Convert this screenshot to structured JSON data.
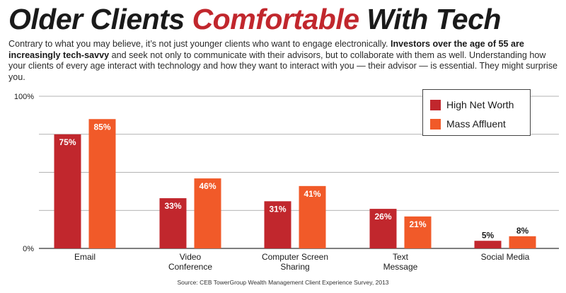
{
  "header": {
    "title_part1": "Older Clients ",
    "title_accent": "Comfortable",
    "title_part2": " With Tech"
  },
  "intro": {
    "text_before": "Contrary to what you may believe, it’s not just younger clients who want to engage electronically. ",
    "text_bold": "Investors over the age of 55 are increasingly tech-savvy",
    "text_after": " and seek not only to communicate with their advisors, but to collaborate with them as well. Understanding how your clients of every age interact with technology and how they want to interact with you — their advisor — is essential. They might surprise you."
  },
  "source": "Source: CEB TowerGroup Wealth Management Client Experience Survey, 2013",
  "colors": {
    "accent": "#c1272d",
    "high_net_worth": "#c1272d",
    "mass_affluent": "#f15a29",
    "grid": "#9a9a9a",
    "axis": "#333333"
  },
  "chart_data": {
    "type": "bar",
    "categories": [
      [
        "Email"
      ],
      [
        "Video",
        "Conference"
      ],
      [
        "Computer Screen",
        "Sharing"
      ],
      [
        "Text",
        "Message"
      ],
      [
        "Social Media"
      ]
    ],
    "series": [
      {
        "name": "High Net Worth",
        "values": [
          75,
          33,
          31,
          26,
          5
        ],
        "labels": [
          "75%",
          "33%",
          "31%",
          "26%",
          "5%"
        ],
        "color": "#c1272d"
      },
      {
        "name": "Mass Affluent",
        "values": [
          85,
          46,
          41,
          21,
          8
        ],
        "labels": [
          "85%",
          "46%",
          "41%",
          "21%",
          "8%"
        ],
        "color": "#f15a29"
      }
    ],
    "yticks": [
      {
        "value": 0,
        "label": "0%"
      },
      {
        "value": 100,
        "label": "100%"
      }
    ],
    "gridlines": [
      0,
      25,
      50,
      75,
      100
    ],
    "ylim": [
      0,
      100
    ],
    "legend_position": "top-right",
    "grid": true
  }
}
